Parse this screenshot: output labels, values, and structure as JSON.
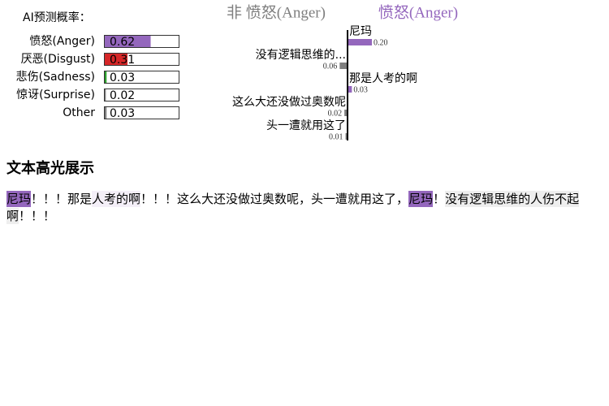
{
  "chart_data": [
    {
      "type": "prob-bar",
      "title": "AI预测概率：",
      "categories": [
        "愤怒(Anger)",
        "厌恶(Disgust)",
        "悲伤(Sadness)",
        "惊讶(Surprise)",
        "Other"
      ],
      "values": [
        0.62,
        0.31,
        0.03,
        0.02,
        0.03
      ],
      "colors": [
        "#9467bd",
        "#d62728",
        "#2ca02c",
        "#7f7f7f",
        "#7f7f7f"
      ]
    },
    {
      "type": "feature-bar",
      "categories": [
        "尼玛",
        "没有逻辑思维的...",
        "那是人考的啊",
        "这么大还没做过奥数呢",
        "头一遭就用这了"
      ],
      "series": [
        {
          "name": "非 愤怒(Anger)",
          "color": "#7f7f7f",
          "values": [
            null,
            0.06,
            null,
            0.02,
            0.01
          ]
        },
        {
          "name": "愤怒(Anger)",
          "color": "#9467bd",
          "values": [
            0.2,
            null,
            0.03,
            null,
            null
          ],
          "value_labels": [
            "0.20",
            null,
            "0.03",
            null,
            null
          ]
        }
      ]
    }
  ],
  "text_highlight": {
    "title": "文本高光展示",
    "segments": [
      {
        "text": "尼玛",
        "color": "#9467bd"
      },
      {
        "text": "！！！那是"
      },
      {
        "text": "人考的啊",
        "color": "#f4eff8"
      },
      {
        "text": "！！！这么大还没做过奥数呢，头一遭就用这了，"
      },
      {
        "text": "尼玛",
        "color": "#9467bd"
      },
      {
        "text": "！"
      },
      {
        "text": "没有逻辑思维的人伤不起啊",
        "color": "#eeeeee"
      },
      {
        "text": "！！！"
      }
    ]
  }
}
